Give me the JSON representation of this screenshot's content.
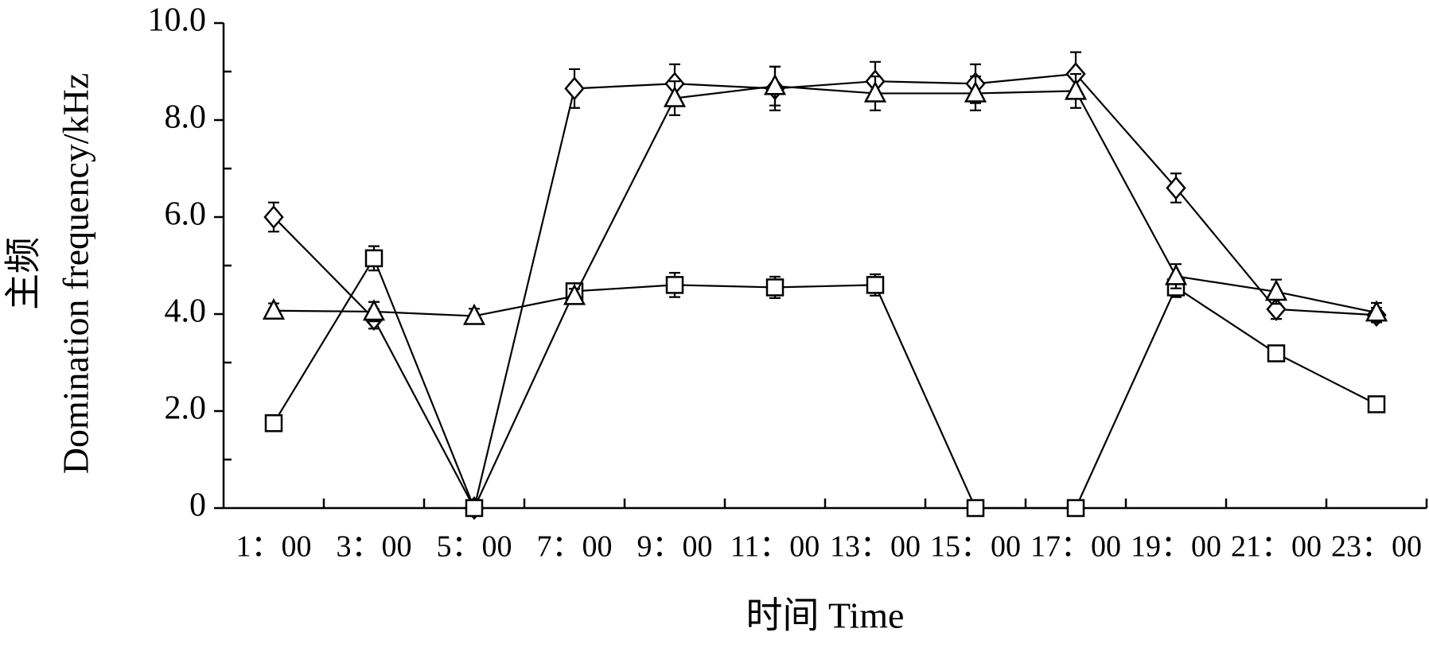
{
  "chart_data": {
    "type": "line",
    "xlabel": "时间  Time",
    "ylabel": [
      "主频",
      "Domination frequency/kHz"
    ],
    "categories": [
      "1：00",
      "3：00",
      "5：00",
      "7：00",
      "9：00",
      "11：00",
      "13：00",
      "15：00",
      "17：00",
      "19：00",
      "21：00",
      "23：00"
    ],
    "ylim": [
      0,
      10
    ],
    "yticks": [
      0,
      {
        "value": 2,
        "label": "2.0"
      },
      {
        "value": 4,
        "label": "4.0"
      },
      {
        "value": 6,
        "label": "6.0"
      },
      {
        "value": 8,
        "label": "8.0"
      },
      {
        "value": 10,
        "label": "10.0"
      }
    ],
    "series": [
      {
        "color": "#000000",
        "marker": "diamond",
        "values": [
          6.0,
          3.9,
          0,
          8.65,
          8.75,
          8.65,
          8.8,
          8.75,
          8.95,
          6.6,
          4.1,
          3.98
        ],
        "errors": [
          0.3,
          0.2,
          0,
          0.4,
          0.4,
          0.45,
          0.4,
          0.4,
          0.45,
          0.3,
          0.2,
          0.15
        ]
      },
      {
        "color": "#000000",
        "marker": "square",
        "values": [
          1.75,
          5.15,
          0,
          4.47,
          4.6,
          4.55,
          4.6,
          0,
          0,
          4.55,
          3.19,
          2.14
        ],
        "errors": [
          0.1,
          0.25,
          0,
          0.15,
          0.25,
          0.22,
          0.22,
          0,
          0,
          0.2,
          0.1,
          0.08
        ]
      },
      {
        "color": "#000000",
        "marker": "triangle",
        "values": [
          4.07,
          4.05,
          3.96,
          4.37,
          8.45,
          8.7,
          8.55,
          8.55,
          8.6,
          4.78,
          4.46,
          4.03
        ],
        "errors": [
          0.15,
          0.2,
          0.15,
          0.15,
          0.35,
          0.4,
          0.35,
          0.35,
          0.35,
          0.25,
          0.25,
          0.2
        ]
      }
    ]
  }
}
